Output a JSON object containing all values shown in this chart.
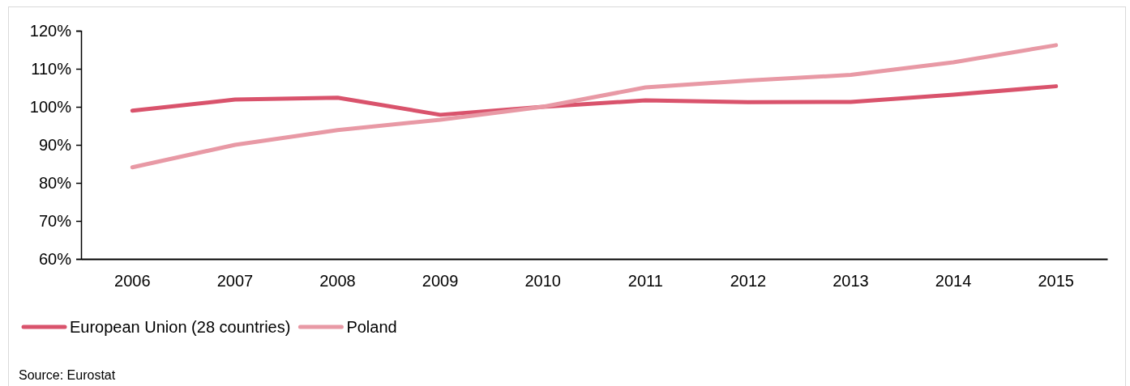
{
  "chart_data": {
    "type": "line",
    "categories": [
      "2006",
      "2007",
      "2008",
      "2009",
      "2010",
      "2011",
      "2012",
      "2013",
      "2014",
      "2015"
    ],
    "series": [
      {
        "name": "European Union (28 countries)",
        "color": "#d9536c",
        "values": [
          99.0,
          101.9,
          102.4,
          97.9,
          100.0,
          101.7,
          101.2,
          101.3,
          103.2,
          105.4
        ]
      },
      {
        "name": "Poland",
        "color": "#e899a5",
        "values": [
          84.1,
          90.0,
          93.9,
          96.6,
          100.0,
          105.1,
          106.9,
          108.4,
          111.7,
          116.2
        ]
      }
    ],
    "ylim": [
      60,
      120
    ],
    "yticks": [
      {
        "value": 60,
        "label": "60%"
      },
      {
        "value": 70,
        "label": "70%"
      },
      {
        "value": 80,
        "label": "80%"
      },
      {
        "value": 90,
        "label": "90%"
      },
      {
        "value": 100,
        "label": "100%"
      },
      {
        "value": 110,
        "label": "110%"
      },
      {
        "value": 120,
        "label": "120%"
      }
    ],
    "grid": false,
    "legend": "bottom left",
    "marker": "none",
    "line_style": "solid",
    "annotations": [
      "Source: Eurostat"
    ]
  }
}
